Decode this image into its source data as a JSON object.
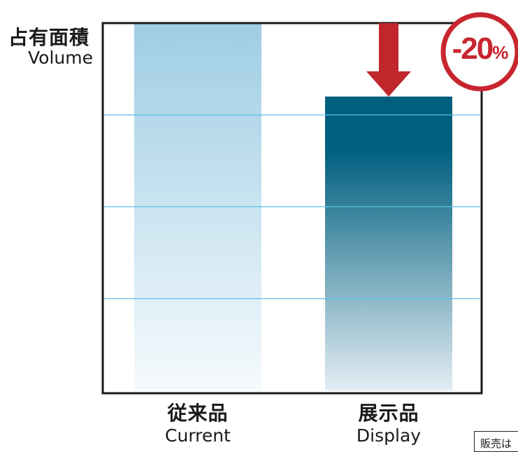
{
  "chart_data": {
    "type": "bar",
    "categories": [
      {
        "jp": "従来品",
        "en": "Current"
      },
      {
        "jp": "展示品",
        "en": "Display"
      }
    ],
    "values": [
      100,
      80
    ],
    "ylabel": {
      "jp": "占有面積",
      "en": "Volume"
    },
    "ylim": [
      0,
      100
    ],
    "grid": true,
    "annotation": {
      "value": "-20",
      "unit": "%"
    },
    "colors": {
      "current_top": "#9ecde4",
      "current_bottom": "#f6fafd",
      "display_top": "#005f7f",
      "display_bottom": "#e4eef4",
      "grid": "#5bbfe6",
      "arrow": "#c0272d",
      "badge": "#c8262f",
      "frame": "#1a1a1a"
    }
  },
  "note": {
    "text": "販売は"
  }
}
